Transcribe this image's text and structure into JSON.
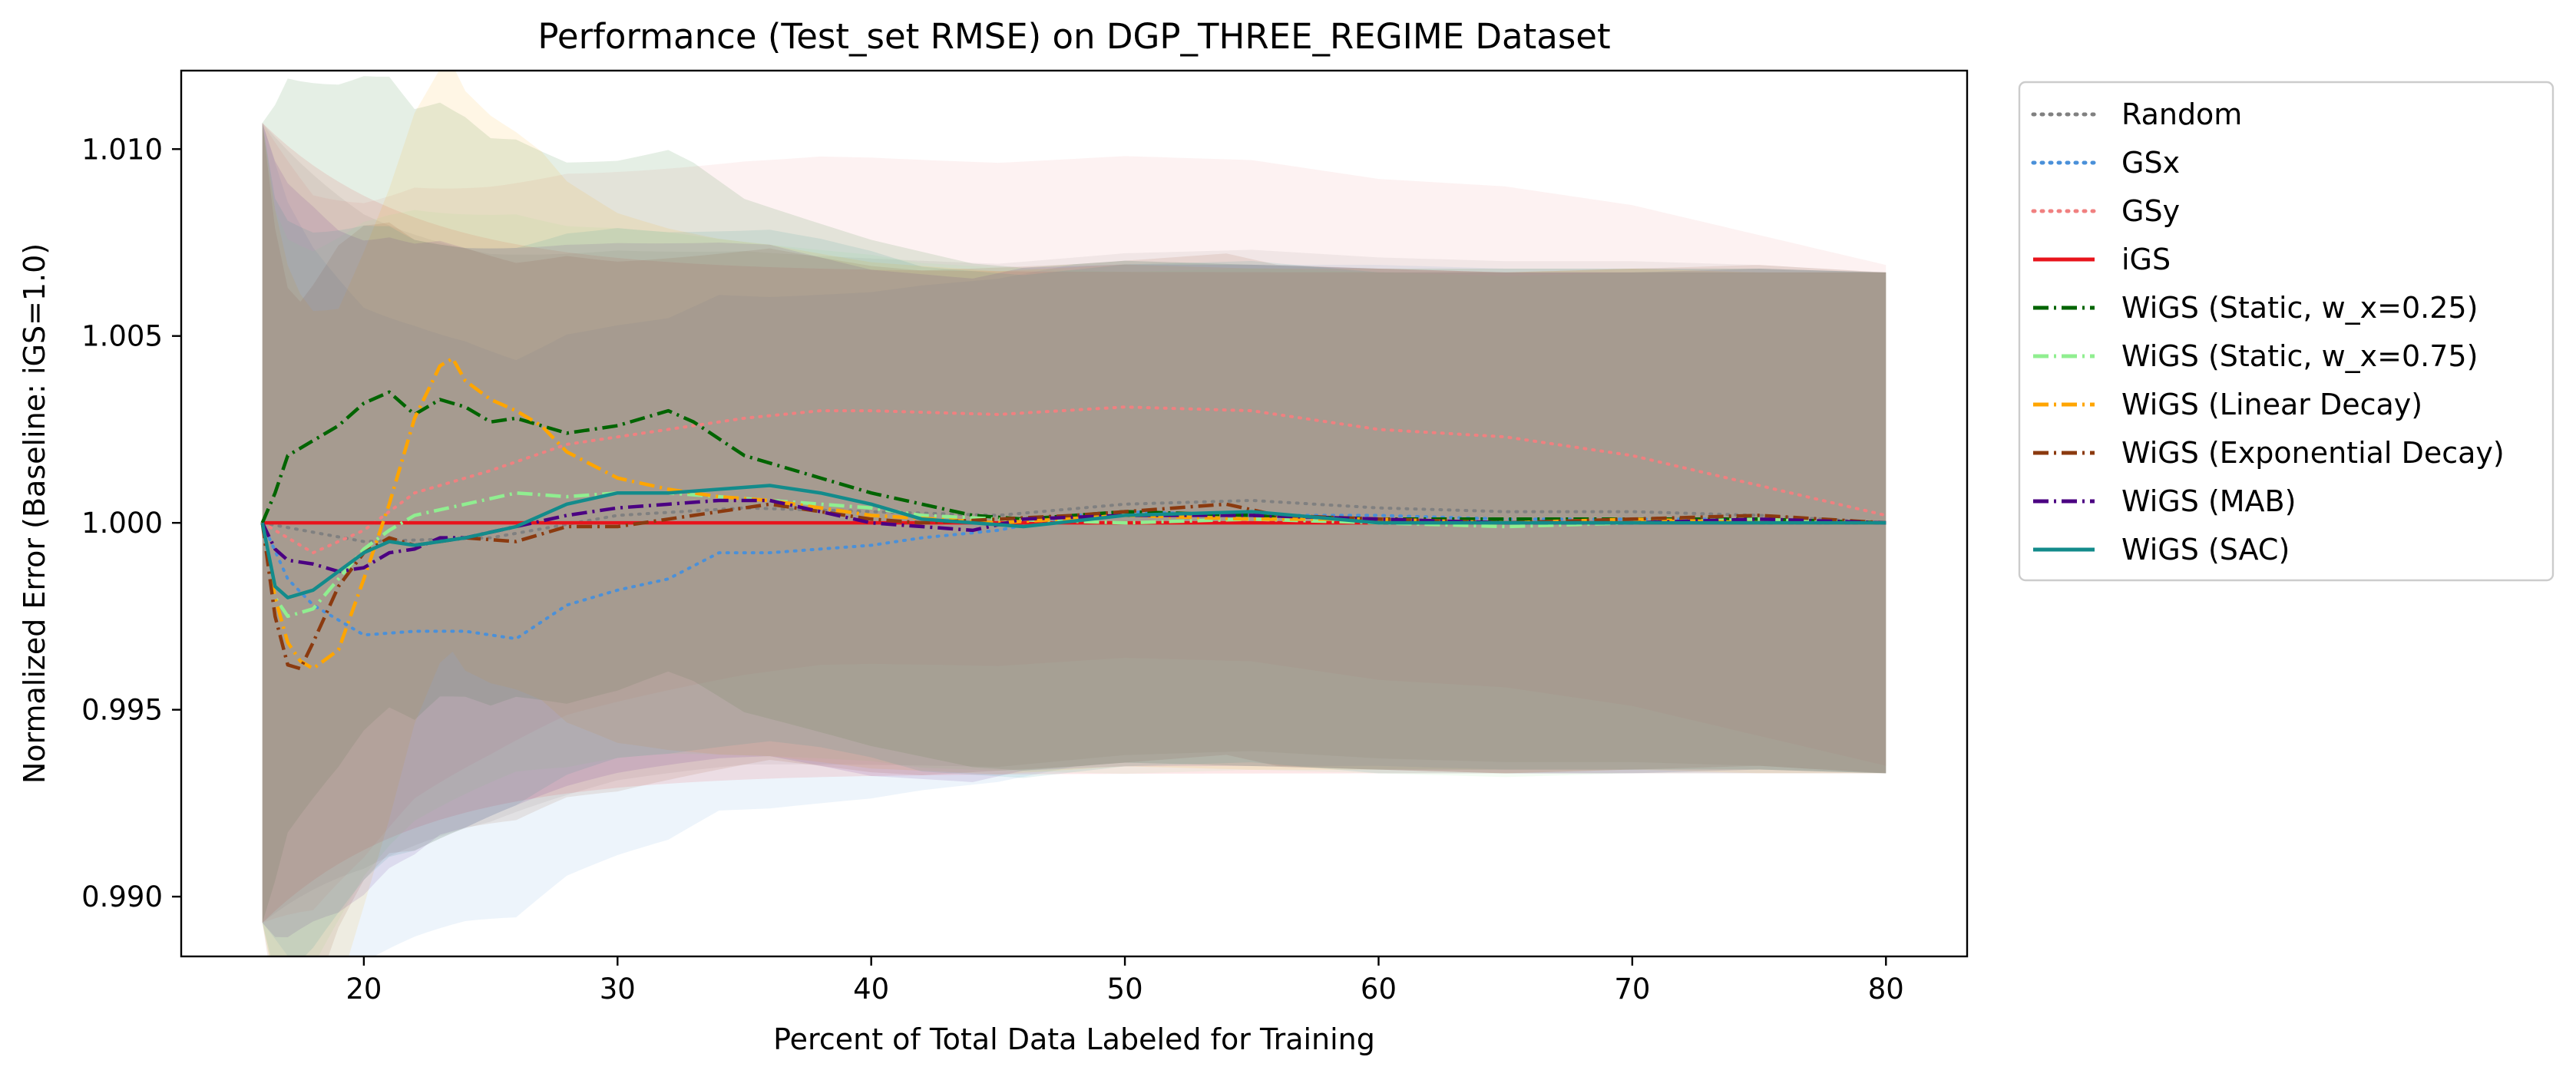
{
  "chart_data": {
    "type": "line",
    "title": "Performance (Test_set RMSE) on DGP_THREE_REGIME Dataset",
    "xlabel": "Percent of Total Data Labeled for Training",
    "ylabel": "Normalized Error (Baseline: iGS=1.0)",
    "xlim": [
      12.8,
      83.2
    ],
    "ylim": [
      0.9884,
      1.0121
    ],
    "xticks": [
      20,
      30,
      40,
      50,
      60,
      70,
      80
    ],
    "yticks": [
      0.99,
      0.995,
      1.0,
      1.005,
      1.01
    ],
    "ytick_labels": [
      "0.990",
      "0.995",
      "1.000",
      "1.005",
      "1.010"
    ],
    "grid": false,
    "legend_position": "outside-right",
    "series": [
      {
        "name": "Random",
        "color": "#808080",
        "style": "dotted",
        "x": [
          16,
          20,
          25,
          30,
          35,
          40,
          45,
          50,
          55,
          60,
          65,
          70,
          75,
          80
        ],
        "y": [
          1.0,
          0.9995,
          0.9996,
          1.0002,
          1.0004,
          1.0003,
          1.0002,
          1.0005,
          1.0006,
          1.0004,
          1.0003,
          1.0003,
          1.0002,
          1.0
        ]
      },
      {
        "name": "GSx",
        "color": "#4a90d9",
        "style": "dotted",
        "x": [
          16,
          17,
          18,
          20,
          22,
          24,
          26,
          28,
          30,
          32,
          34,
          36,
          38,
          40,
          42,
          45,
          48,
          50,
          55,
          60,
          65,
          70,
          75,
          80
        ],
        "y": [
          1.0,
          0.9985,
          0.9978,
          0.997,
          0.9971,
          0.9971,
          0.9969,
          0.9978,
          0.9982,
          0.9985,
          0.9992,
          0.9992,
          0.9993,
          0.9994,
          0.9996,
          0.9998,
          1.0002,
          1.0003,
          1.0002,
          1.0002,
          1.0001,
          1.0001,
          1.0001,
          1.0
        ]
      },
      {
        "name": "GSy",
        "color": "#f08080",
        "style": "dotted",
        "x": [
          16,
          18,
          20,
          22,
          25,
          28,
          30,
          32,
          35,
          38,
          40,
          45,
          50,
          55,
          60,
          65,
          70,
          75,
          80
        ],
        "y": [
          1.0,
          0.9992,
          0.9998,
          1.0008,
          1.0014,
          1.0021,
          1.0023,
          1.0025,
          1.0028,
          1.003,
          1.003,
          1.0029,
          1.0031,
          1.003,
          1.0025,
          1.0023,
          1.0018,
          1.001,
          1.0002
        ]
      },
      {
        "name": "iGS",
        "color": "#e8141c",
        "style": "solid",
        "x": [
          16,
          80
        ],
        "y": [
          1.0,
          1.0
        ]
      },
      {
        "name": "WiGS (Static, w_x=0.25)",
        "color": "#006400",
        "style": "dashdot",
        "x": [
          16,
          16.5,
          17,
          18,
          19,
          20,
          21,
          22,
          23,
          24,
          25,
          26,
          28,
          30,
          32,
          33,
          35,
          38,
          40,
          42,
          44,
          46,
          50,
          55,
          60,
          65,
          70,
          75,
          80
        ],
        "y": [
          1.0,
          1.0008,
          1.0018,
          1.0022,
          1.0026,
          1.0032,
          1.0035,
          1.0029,
          1.0033,
          1.0031,
          1.0027,
          1.0028,
          1.0024,
          1.0026,
          1.003,
          1.0027,
          1.0018,
          1.0012,
          1.0008,
          1.0005,
          1.0002,
          1.0001,
          1.0003,
          1.0002,
          1.0001,
          1.0001,
          1.0001,
          1.0001,
          1.0
        ]
      },
      {
        "name": "WiGS (Static, w_x=0.75)",
        "color": "#90ee90",
        "style": "dashdot",
        "x": [
          16,
          16.5,
          17,
          18,
          19,
          20,
          21,
          22,
          24,
          26,
          28,
          30,
          32,
          34,
          36,
          38,
          40,
          42,
          45,
          50,
          55,
          60,
          65,
          70,
          75,
          80
        ],
        "y": [
          1.0,
          0.998,
          0.9975,
          0.9977,
          0.9985,
          0.9993,
          0.9998,
          1.0002,
          1.0005,
          1.0008,
          1.0007,
          1.0008,
          1.0008,
          1.0007,
          1.0006,
          1.0005,
          1.0004,
          1.0002,
          1.0001,
          1.0,
          1.0001,
          1.0,
          0.9999,
          1.0,
          1.0001,
          1.0
        ]
      },
      {
        "name": "WiGS (Linear Decay)",
        "color": "#ffa500",
        "style": "dashdot",
        "x": [
          16,
          16.5,
          17,
          17.5,
          18,
          19,
          20,
          21,
          22,
          23,
          23.5,
          24,
          25,
          26,
          27,
          28,
          30,
          32,
          34,
          36,
          38,
          40,
          45,
          50,
          55,
          60,
          65,
          70,
          75,
          80
        ],
        "y": [
          1.0,
          0.998,
          0.9968,
          0.9963,
          0.9961,
          0.9966,
          0.9985,
          1.0005,
          1.0028,
          1.0042,
          1.0044,
          1.0038,
          1.0033,
          1.003,
          1.0026,
          1.0019,
          1.0012,
          1.0009,
          1.0007,
          1.0006,
          1.0004,
          1.0002,
          1.0,
          1.0002,
          1.0001,
          1.0001,
          1.0,
          1.0001,
          1.0,
          1.0
        ]
      },
      {
        "name": "WiGS (Exponential Decay)",
        "color": "#8b3a0f",
        "style": "dashdot",
        "x": [
          16,
          16.5,
          17,
          17.5,
          18,
          19,
          20,
          21,
          22,
          24,
          26,
          28,
          30,
          32,
          34,
          36,
          38,
          40,
          42,
          45,
          48,
          50,
          54,
          56,
          60,
          65,
          70,
          75,
          80
        ],
        "y": [
          1.0,
          0.9975,
          0.9962,
          0.9961,
          0.9968,
          0.9983,
          0.9992,
          0.9996,
          0.9994,
          0.9996,
          0.9995,
          0.9999,
          0.9999,
          1.0001,
          1.0003,
          1.0005,
          1.0003,
          1.0001,
          1.0,
          1.0001,
          1.0002,
          1.0003,
          1.0005,
          1.0002,
          1.0001,
          1.0,
          1.0001,
          1.0002,
          1.0
        ]
      },
      {
        "name": "WiGS (MAB)",
        "color": "#4b0082",
        "style": "dashdot",
        "x": [
          16,
          16.5,
          17,
          18,
          19,
          20,
          21,
          22,
          23,
          24,
          26,
          28,
          30,
          32,
          34,
          36,
          38,
          40,
          42,
          44,
          46,
          50,
          55,
          60,
          65,
          70,
          75,
          80
        ],
        "y": [
          1.0,
          0.9993,
          0.999,
          0.9989,
          0.9987,
          0.9988,
          0.9992,
          0.9993,
          0.9996,
          0.9996,
          0.9999,
          1.0002,
          1.0004,
          1.0005,
          1.0006,
          1.0006,
          1.0003,
          1.0,
          0.9999,
          0.9998,
          1.0001,
          1.0002,
          1.0002,
          1.0001,
          1.0,
          1.0,
          1.0001,
          1.0
        ]
      },
      {
        "name": "WiGS (SAC)",
        "color": "#138b8b",
        "style": "solid",
        "x": [
          16,
          16.5,
          17,
          18,
          19,
          20,
          21,
          22,
          24,
          26,
          28,
          30,
          32,
          34,
          36,
          38,
          40,
          42,
          44,
          46,
          50,
          55,
          60,
          65,
          70,
          75,
          80
        ],
        "y": [
          1.0,
          0.9983,
          0.998,
          0.9982,
          0.9987,
          0.9992,
          0.9995,
          0.9994,
          0.9996,
          0.9999,
          1.0005,
          1.0008,
          1.0008,
          1.0009,
          1.001,
          1.0008,
          1.0005,
          1.0001,
          1.0,
          0.9999,
          1.0002,
          1.0003,
          1.0,
          1.0,
          1.0,
          1.0,
          1.0
        ]
      }
    ]
  }
}
